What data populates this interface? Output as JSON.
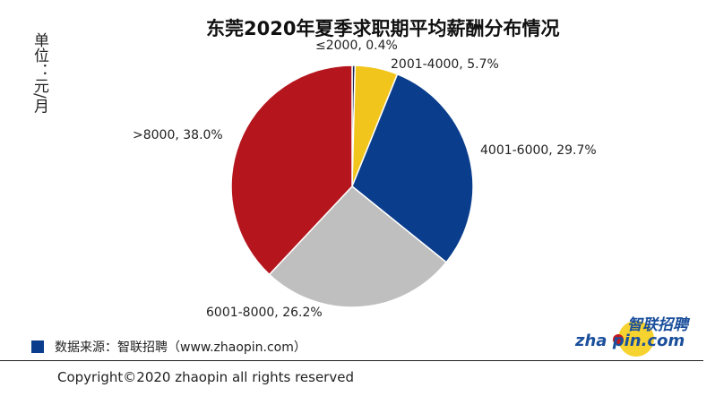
{
  "chart_data": {
    "type": "pie",
    "title": "东莞2020年夏季求职期平均薪酬分布情况",
    "unit_label": "单位：元/月",
    "start": "top",
    "direction": "clockwise",
    "slices": [
      {
        "label": "≤2000",
        "value": 0.4,
        "text": "≤2000, 0.4%",
        "color": "#1f2a5a"
      },
      {
        "label": "2001-4000",
        "value": 5.7,
        "text": "2001-4000, 5.7%",
        "color": "#f2c51c"
      },
      {
        "label": "4001-6000",
        "value": 29.7,
        "text": "4001-6000, 29.7%",
        "color": "#0a3d8c"
      },
      {
        "label": "6001-8000",
        "value": 26.2,
        "text": "6001-8000, 26.2%",
        "color": "#bfbfbf"
      },
      {
        "label": ">8000",
        "value": 38.0,
        "text": ">8000, 38.0%",
        "color": "#b5161e"
      }
    ]
  },
  "source": {
    "text": "数据来源：智联招聘（www.zhaopin.com）",
    "color": "#0a3d8c"
  },
  "logo": {
    "text_cn": "智联招聘",
    "text_en": "zhaopin.com"
  },
  "copyright": "Copyright©2020 zhaopin all rights reserved"
}
